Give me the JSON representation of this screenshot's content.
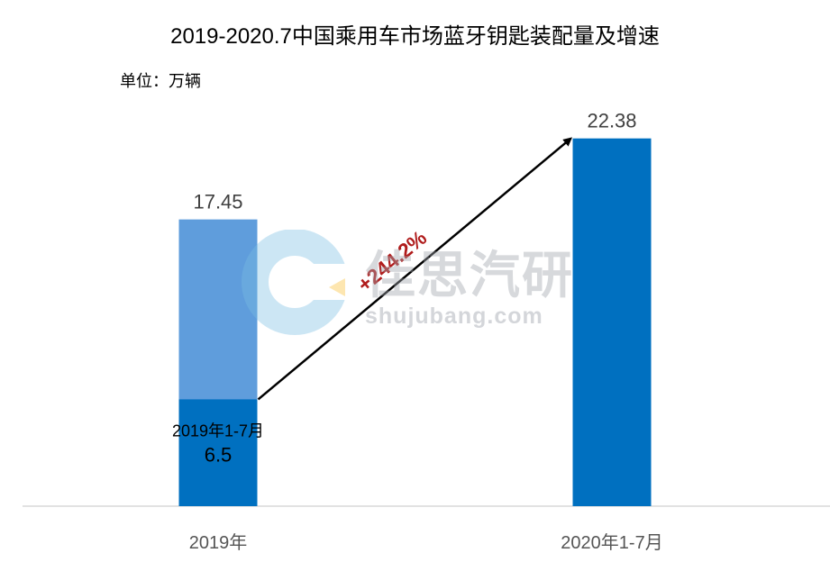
{
  "chart_data": {
    "type": "bar",
    "title": "2019-2020.7中国乘用车市场蓝牙钥匙装配量及增速",
    "unit_label": "单位：万辆",
    "categories": [
      "2019年",
      "2020年1-7月"
    ],
    "series": [
      {
        "values": [
          17.45,
          22.38
        ]
      }
    ],
    "sub_segment": {
      "category": "2019年",
      "label": "2019年1-7月",
      "value": 6.5
    },
    "value_labels": [
      "17.45",
      "22.38"
    ],
    "sub_value_label": "6.5",
    "growth_annotation": "+244.2%",
    "ylim": [
      0,
      24.5
    ],
    "grid": false,
    "colors": {
      "total_2019": "#5f9ddc",
      "jan_jul_2019": "#0070c0",
      "jan_jul_2020": "#0070c0",
      "growth": "#b01c1c",
      "arrow": "#000000"
    }
  },
  "watermark": {
    "brand": "佳思汽研",
    "url": "shujubang.com"
  }
}
